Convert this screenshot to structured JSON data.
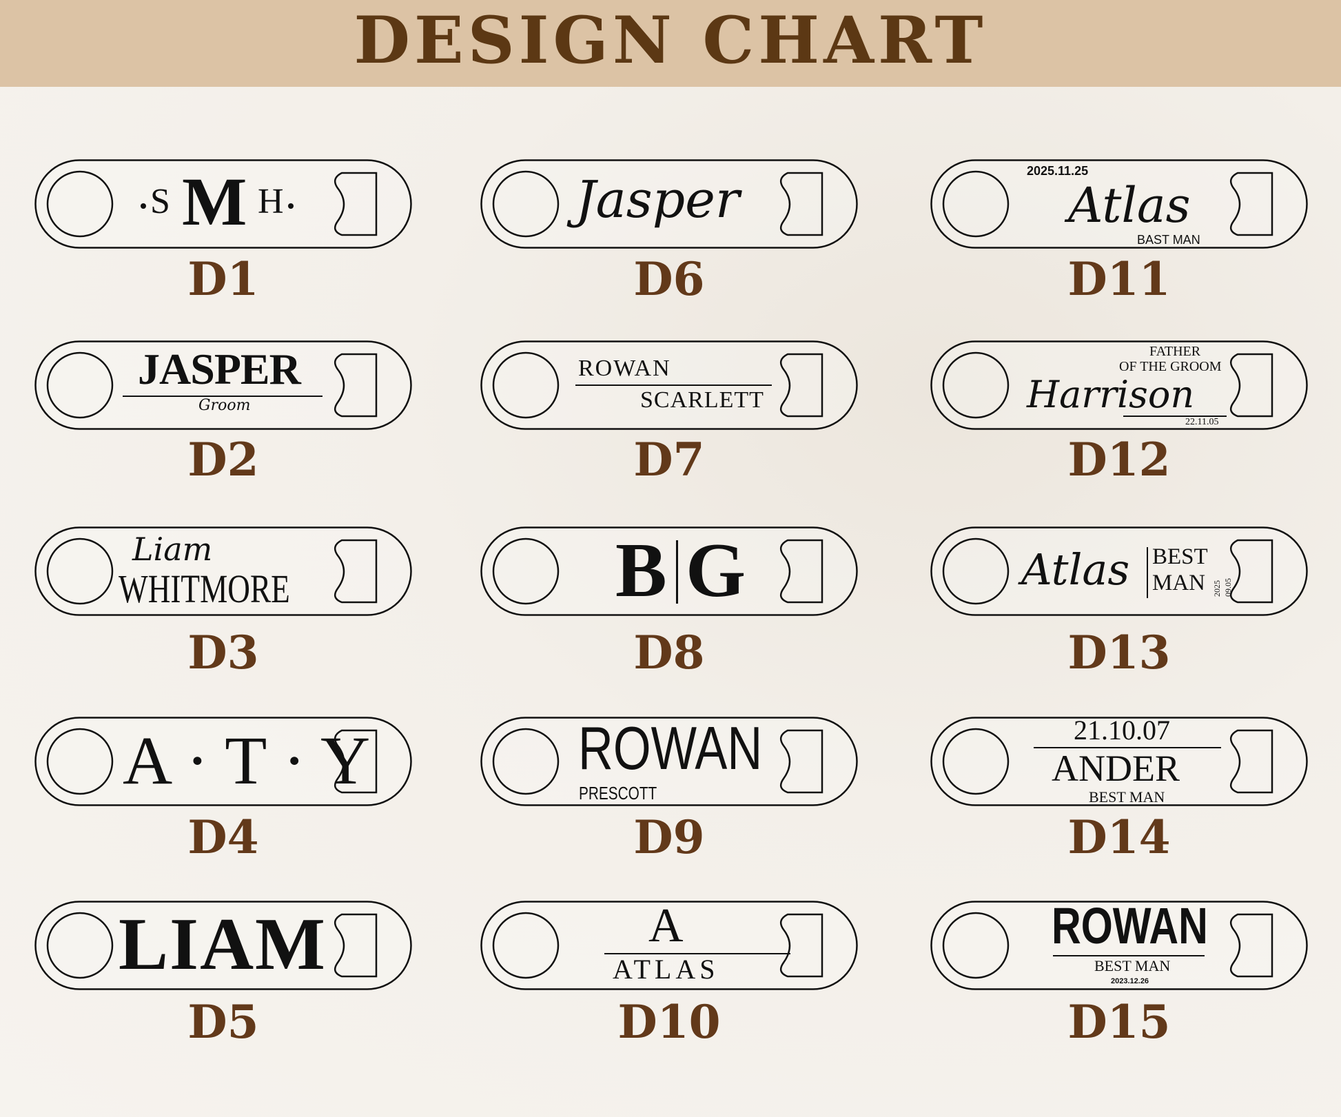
{
  "header": {
    "title": "DESIGN CHART"
  },
  "colors": {
    "header_band": "#dcc3a5",
    "title": "#5c3814",
    "label": "#62391a",
    "engraving": "#111111",
    "background": "#f4f1ec"
  },
  "opener_icons": {
    "left": "circle-hole-icon",
    "right": "bottle-cap-opener-icon"
  },
  "designs": [
    {
      "id": "D1",
      "lines": [
        "S",
        "M",
        "H"
      ]
    },
    {
      "id": "D2",
      "lines": [
        "JASPER",
        "Groom"
      ]
    },
    {
      "id": "D3",
      "lines": [
        "Liam",
        "WHITMORE"
      ]
    },
    {
      "id": "D4",
      "lines": [
        "A · T · Y"
      ]
    },
    {
      "id": "D5",
      "lines": [
        "LIAM"
      ]
    },
    {
      "id": "D6",
      "lines": [
        "Jasper"
      ]
    },
    {
      "id": "D7",
      "lines": [
        "ROWAN",
        "SCARLETT"
      ]
    },
    {
      "id": "D8",
      "lines": [
        "B",
        "G"
      ]
    },
    {
      "id": "D9",
      "lines": [
        "ROWAN",
        "PRESCOTT"
      ]
    },
    {
      "id": "D10",
      "lines": [
        "A",
        "ATLAS"
      ]
    },
    {
      "id": "D11",
      "lines": [
        "2025.11.25",
        "Atlas",
        "BAST MAN"
      ]
    },
    {
      "id": "D12",
      "lines": [
        "FATHER",
        "OF THE GROOM",
        "Harrison",
        "22.11.05"
      ]
    },
    {
      "id": "D13",
      "lines": [
        "Atlas",
        "BEST",
        "MAN",
        "2025",
        "09.05"
      ]
    },
    {
      "id": "D14",
      "lines": [
        "21.10.07",
        "ANDER",
        "BEST MAN"
      ]
    },
    {
      "id": "D15",
      "lines": [
        "ROWAN",
        "BEST MAN",
        "2023.12.26"
      ]
    }
  ]
}
